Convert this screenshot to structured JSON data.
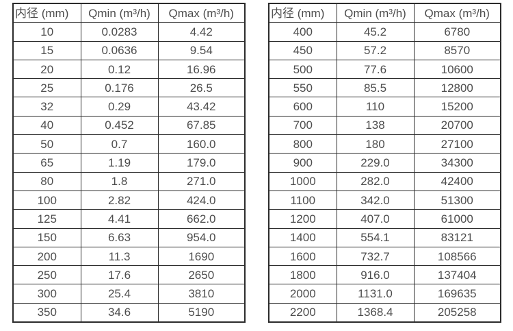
{
  "page": {
    "background": "#ffffff",
    "border_color": "#2b2b2b",
    "text_color": "#4d4d4d"
  },
  "tables": [
    {
      "name": "flow-spec-table-left",
      "headers": [
        "内径 (mm)",
        "Qmin (m³/h)",
        "Qmax (m³/h)"
      ],
      "rows": [
        [
          "10",
          "0.0283",
          "4.42"
        ],
        [
          "15",
          "0.0636",
          "9.54"
        ],
        [
          "20",
          "0.12",
          "16.96"
        ],
        [
          "25",
          "0.176",
          "26.5"
        ],
        [
          "32",
          "0.29",
          "43.42"
        ],
        [
          "40",
          "0.452",
          "67.85"
        ],
        [
          "50",
          "0.7",
          "160.0"
        ],
        [
          "65",
          "1.19",
          "179.0"
        ],
        [
          "80",
          "1.8",
          "271.0"
        ],
        [
          "100",
          "2.82",
          "424.0"
        ],
        [
          "125",
          "4.41",
          "662.0"
        ],
        [
          "150",
          "6.63",
          "954.0"
        ],
        [
          "200",
          "11.3",
          "1690"
        ],
        [
          "250",
          "17.6",
          "2650"
        ],
        [
          "300",
          "25.4",
          "3810"
        ],
        [
          "350",
          "34.6",
          "5190"
        ]
      ]
    },
    {
      "name": "flow-spec-table-right",
      "headers": [
        "内径 (mm)",
        "Qmin (m³/h)",
        "Qmax (m³/h)"
      ],
      "rows": [
        [
          "400",
          "45.2",
          "6780"
        ],
        [
          "450",
          "57.2",
          "8570"
        ],
        [
          "500",
          "77.6",
          "10600"
        ],
        [
          "550",
          "85.5",
          "12800"
        ],
        [
          "600",
          "110",
          "15200"
        ],
        [
          "700",
          "138",
          "20700"
        ],
        [
          "800",
          "180",
          "27100"
        ],
        [
          "900",
          "229.0",
          "34300"
        ],
        [
          "1000",
          "282.0",
          "42400"
        ],
        [
          "1100",
          "342.0",
          "51300"
        ],
        [
          "1200",
          "407.0",
          "61000"
        ],
        [
          "1400",
          "554.1",
          "83121"
        ],
        [
          "1600",
          "732.7",
          "108566"
        ],
        [
          "1800",
          "916.0",
          "137404"
        ],
        [
          "2000",
          "1131.0",
          "169635"
        ],
        [
          "2200",
          "1368.4",
          "205258"
        ]
      ]
    }
  ]
}
